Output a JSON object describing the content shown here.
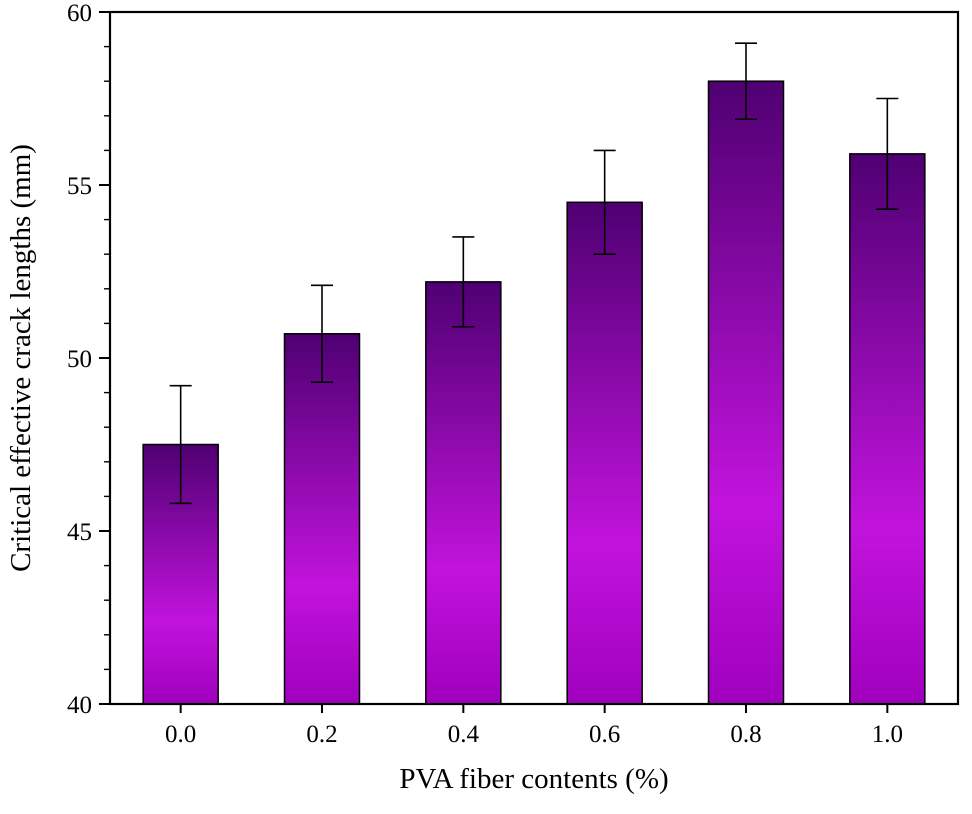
{
  "chart_data": {
    "type": "bar",
    "categories": [
      "0.0",
      "0.2",
      "0.4",
      "0.6",
      "0.8",
      "1.0"
    ],
    "values": [
      47.5,
      50.7,
      52.2,
      54.5,
      58.0,
      55.9
    ],
    "errors": [
      1.7,
      1.4,
      1.3,
      1.5,
      1.1,
      1.6
    ],
    "title": "",
    "xlabel": "PVA fiber contents (%)",
    "ylabel": "Critical effective crack lengths (mm)",
    "ylim": [
      40,
      60
    ],
    "yticks": [
      40,
      45,
      50,
      55,
      60
    ],
    "y_minor_step": 1,
    "grid": false,
    "legend": null,
    "colors": {
      "bar_gradient_top": "#4f0072",
      "bar_gradient_mid": "#c113dc",
      "bar_gradient_bottom": "#a000be",
      "bar_outline": "#000000",
      "axis": "#000000",
      "background": "#ffffff"
    }
  }
}
